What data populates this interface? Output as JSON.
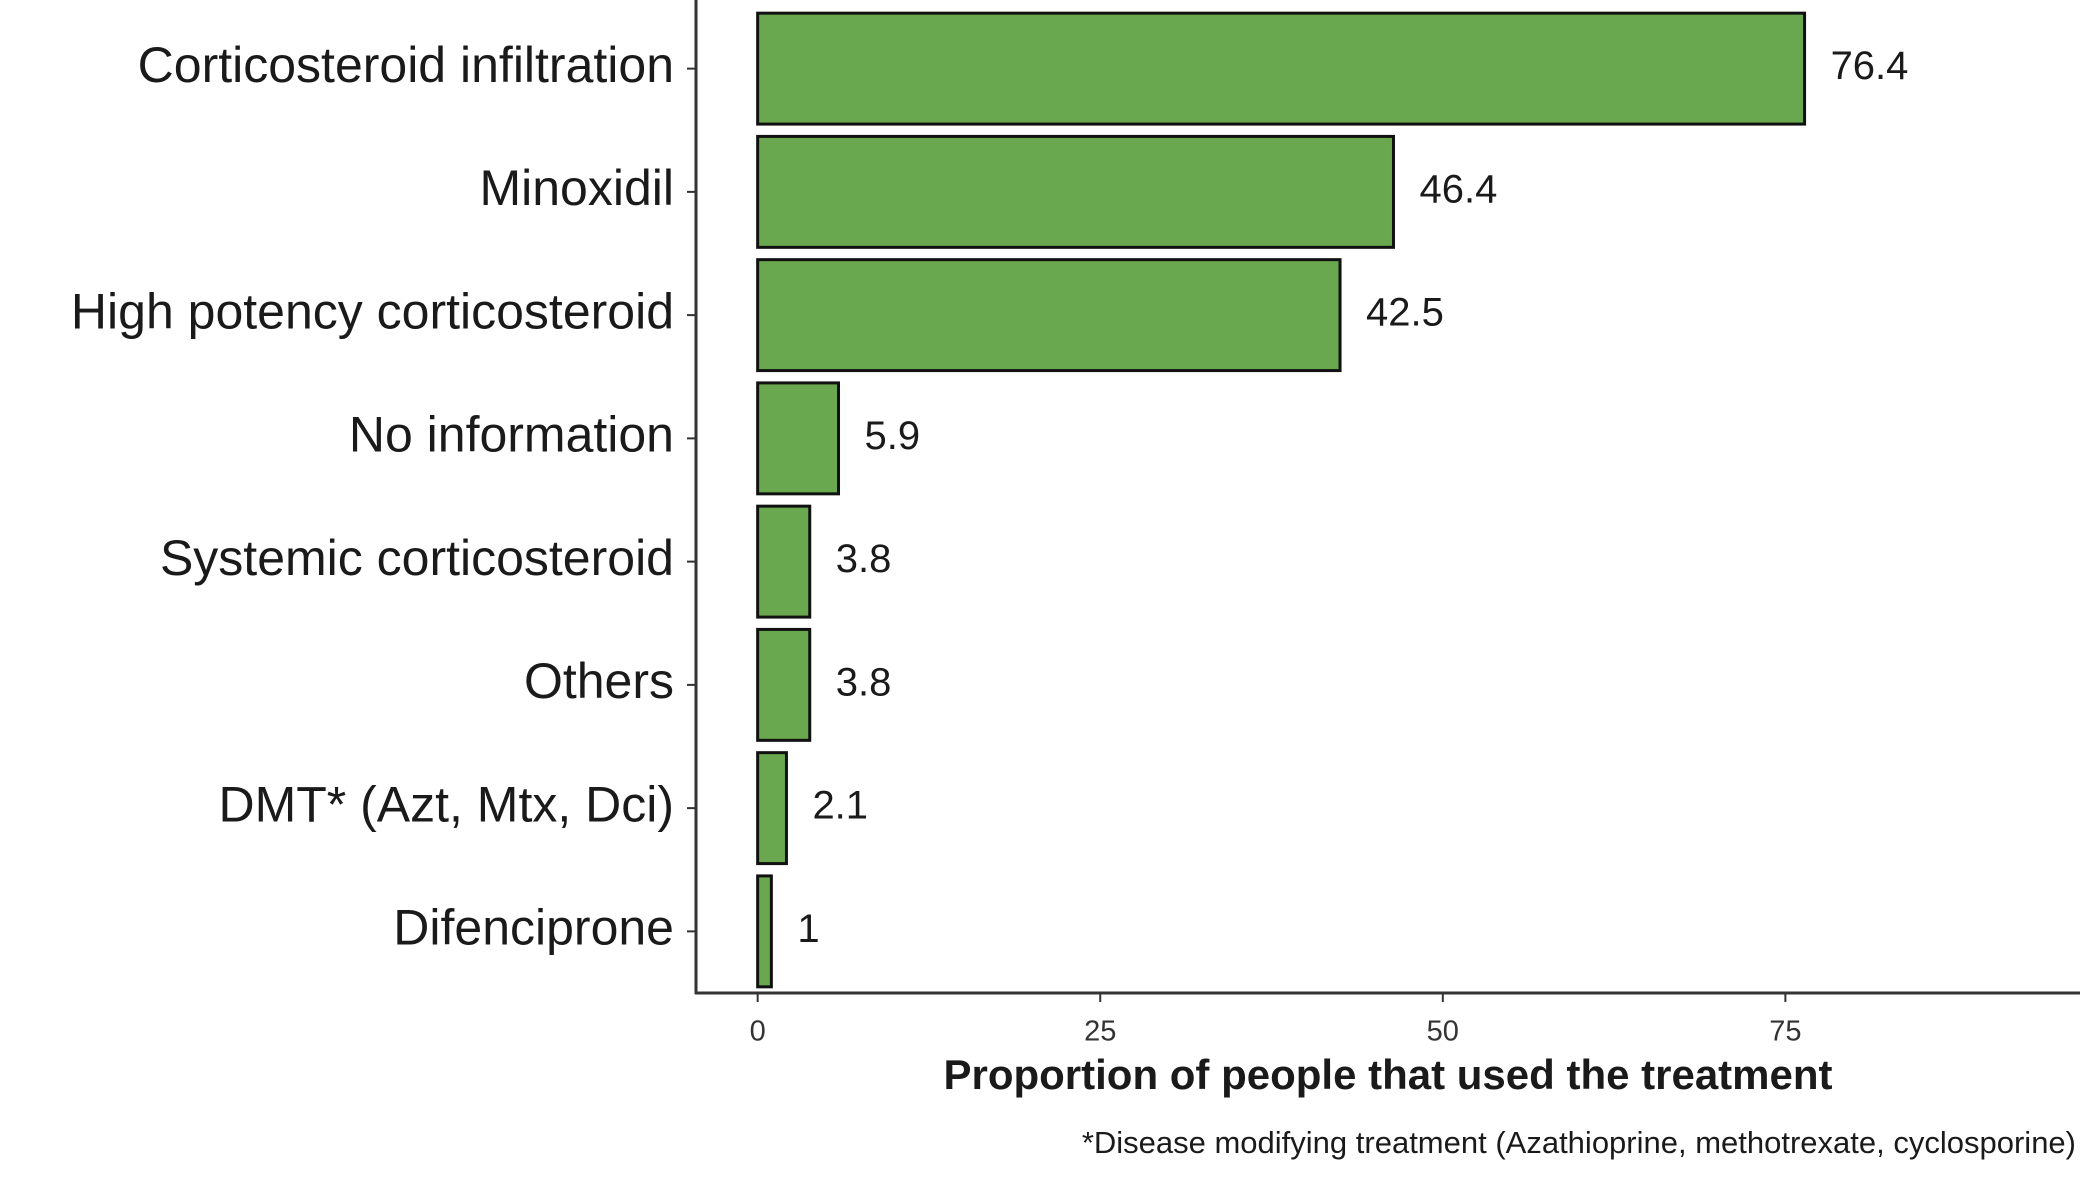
{
  "chart_data": {
    "type": "barh",
    "categories": [
      "Corticosteroid infiltration",
      "Minoxidil",
      "High potency corticosteroid",
      "No information",
      "Systemic corticosteroid",
      "Others",
      "DMT* (Azt, Mtx, Dci)",
      "Difenciprone"
    ],
    "values": [
      76.4,
      46.4,
      42.5,
      5.9,
      3.8,
      3.8,
      2.1,
      1
    ],
    "color": "#6aa84f",
    "xlabel": "Proportion of people that used the treatment",
    "caption": "*Disease modifying treatment (Azathioprine, methotrexate, cyclosporine)",
    "xlim": [
      -4.5,
      96.5
    ],
    "xticks": [
      0,
      25,
      50,
      75
    ],
    "grid": false
  }
}
